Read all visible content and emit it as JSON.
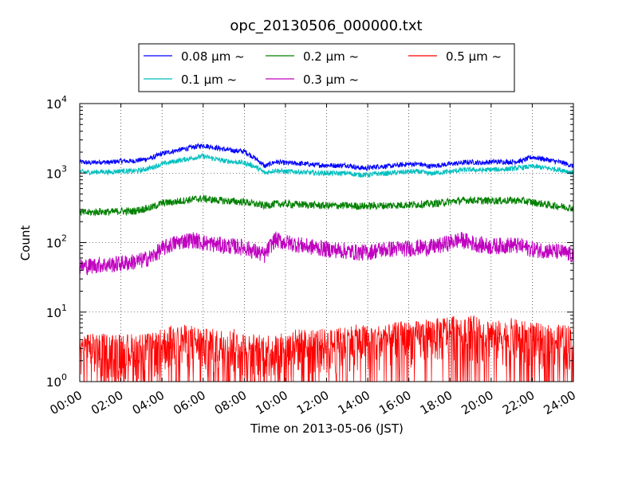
{
  "chart_data": {
    "type": "line",
    "title": "opc_20130506_000000.txt",
    "xlabel": "Time on 2013-05-06 (JST)",
    "ylabel": "Count",
    "yscale": "log",
    "ylim": [
      1,
      10000
    ],
    "xlim": [
      "2013-05-06 00:00",
      "2013-05-07 00:00"
    ],
    "grid": true,
    "legend_position": "top",
    "x_ticks": [
      "00:00",
      "02:00",
      "04:00",
      "06:00",
      "08:00",
      "10:00",
      "12:00",
      "14:00",
      "16:00",
      "18:00",
      "20:00",
      "22:00",
      "24:00"
    ],
    "y_ticks": [
      {
        "base": "10",
        "exp": "0"
      },
      {
        "base": "10",
        "exp": "1"
      },
      {
        "base": "10",
        "exp": "2"
      },
      {
        "base": "10",
        "exp": "3"
      },
      {
        "base": "10",
        "exp": "4"
      }
    ],
    "x_hours": [
      0,
      0.5,
      1,
      1.5,
      2,
      2.5,
      3,
      3.5,
      4,
      4.5,
      5,
      5.5,
      6,
      6.5,
      7,
      7.5,
      8,
      8.5,
      9,
      9.5,
      10,
      10.5,
      11,
      11.5,
      12,
      12.5,
      13,
      13.5,
      14,
      14.5,
      15,
      15.5,
      16,
      16.5,
      17,
      17.5,
      18,
      18.5,
      19,
      19.5,
      20,
      20.5,
      21,
      21.5,
      22,
      22.5,
      23,
      23.5,
      24
    ],
    "series": [
      {
        "name": "0.08 μm ~",
        "color": "#0000ff",
        "values": [
          1450,
          1400,
          1450,
          1420,
          1500,
          1480,
          1550,
          1650,
          1900,
          2050,
          2200,
          2350,
          2500,
          2350,
          2200,
          2100,
          2050,
          1650,
          1250,
          1450,
          1400,
          1380,
          1350,
          1300,
          1300,
          1280,
          1300,
          1200,
          1180,
          1250,
          1250,
          1300,
          1350,
          1350,
          1250,
          1300,
          1350,
          1400,
          1450,
          1400,
          1450,
          1450,
          1450,
          1500,
          1700,
          1600,
          1500,
          1400,
          1250
        ]
      },
      {
        "name": "0.1 μm ~",
        "color": "#00bfbf",
        "values": [
          1050,
          1020,
          1050,
          1030,
          1080,
          1060,
          1100,
          1200,
          1350,
          1450,
          1550,
          1650,
          1750,
          1620,
          1500,
          1450,
          1400,
          1250,
          1000,
          1100,
          1050,
          1050,
          1020,
          1000,
          1000,
          990,
          1000,
          950,
          940,
          980,
          990,
          1020,
          1050,
          1050,
          980,
          1020,
          1050,
          1100,
          1120,
          1100,
          1120,
          1130,
          1150,
          1200,
          1250,
          1200,
          1150,
          1100,
          1000
        ]
      },
      {
        "name": "0.2 μm ~",
        "color": "#008000",
        "values": [
          270,
          270,
          280,
          275,
          285,
          280,
          300,
          320,
          370,
          380,
          400,
          420,
          430,
          410,
          400,
          390,
          385,
          360,
          340,
          360,
          360,
          355,
          350,
          345,
          340,
          340,
          340,
          335,
          335,
          340,
          340,
          345,
          350,
          355,
          360,
          370,
          390,
          400,
          410,
          400,
          400,
          400,
          405,
          400,
          380,
          360,
          340,
          330,
          310
        ]
      },
      {
        "name": "0.3 μm ~",
        "color": "#bf00bf",
        "values": [
          45,
          46,
          48,
          48,
          50,
          52,
          55,
          62,
          80,
          95,
          105,
          110,
          100,
          95,
          90,
          88,
          85,
          75,
          65,
          110,
          100,
          95,
          88,
          85,
          80,
          78,
          75,
          72,
          72,
          78,
          80,
          82,
          82,
          85,
          85,
          90,
          100,
          110,
          100,
          92,
          88,
          90,
          92,
          88,
          80,
          78,
          75,
          72,
          65
        ]
      },
      {
        "name": "0.5 μm ~",
        "color": "#ff0000",
        "values": [
          3,
          3,
          3,
          3,
          3,
          3,
          3,
          3,
          3.5,
          4,
          4,
          4,
          3.5,
          3.5,
          3.5,
          3.5,
          3,
          3,
          3,
          3,
          3,
          3.5,
          3.5,
          3.5,
          3.5,
          3.5,
          4,
          4,
          4,
          4,
          4,
          4.5,
          4.5,
          4.5,
          5,
          5,
          5.5,
          6,
          5.5,
          5,
          5,
          4.5,
          5,
          4.5,
          4.5,
          4,
          4,
          4,
          4
        ]
      }
    ]
  }
}
